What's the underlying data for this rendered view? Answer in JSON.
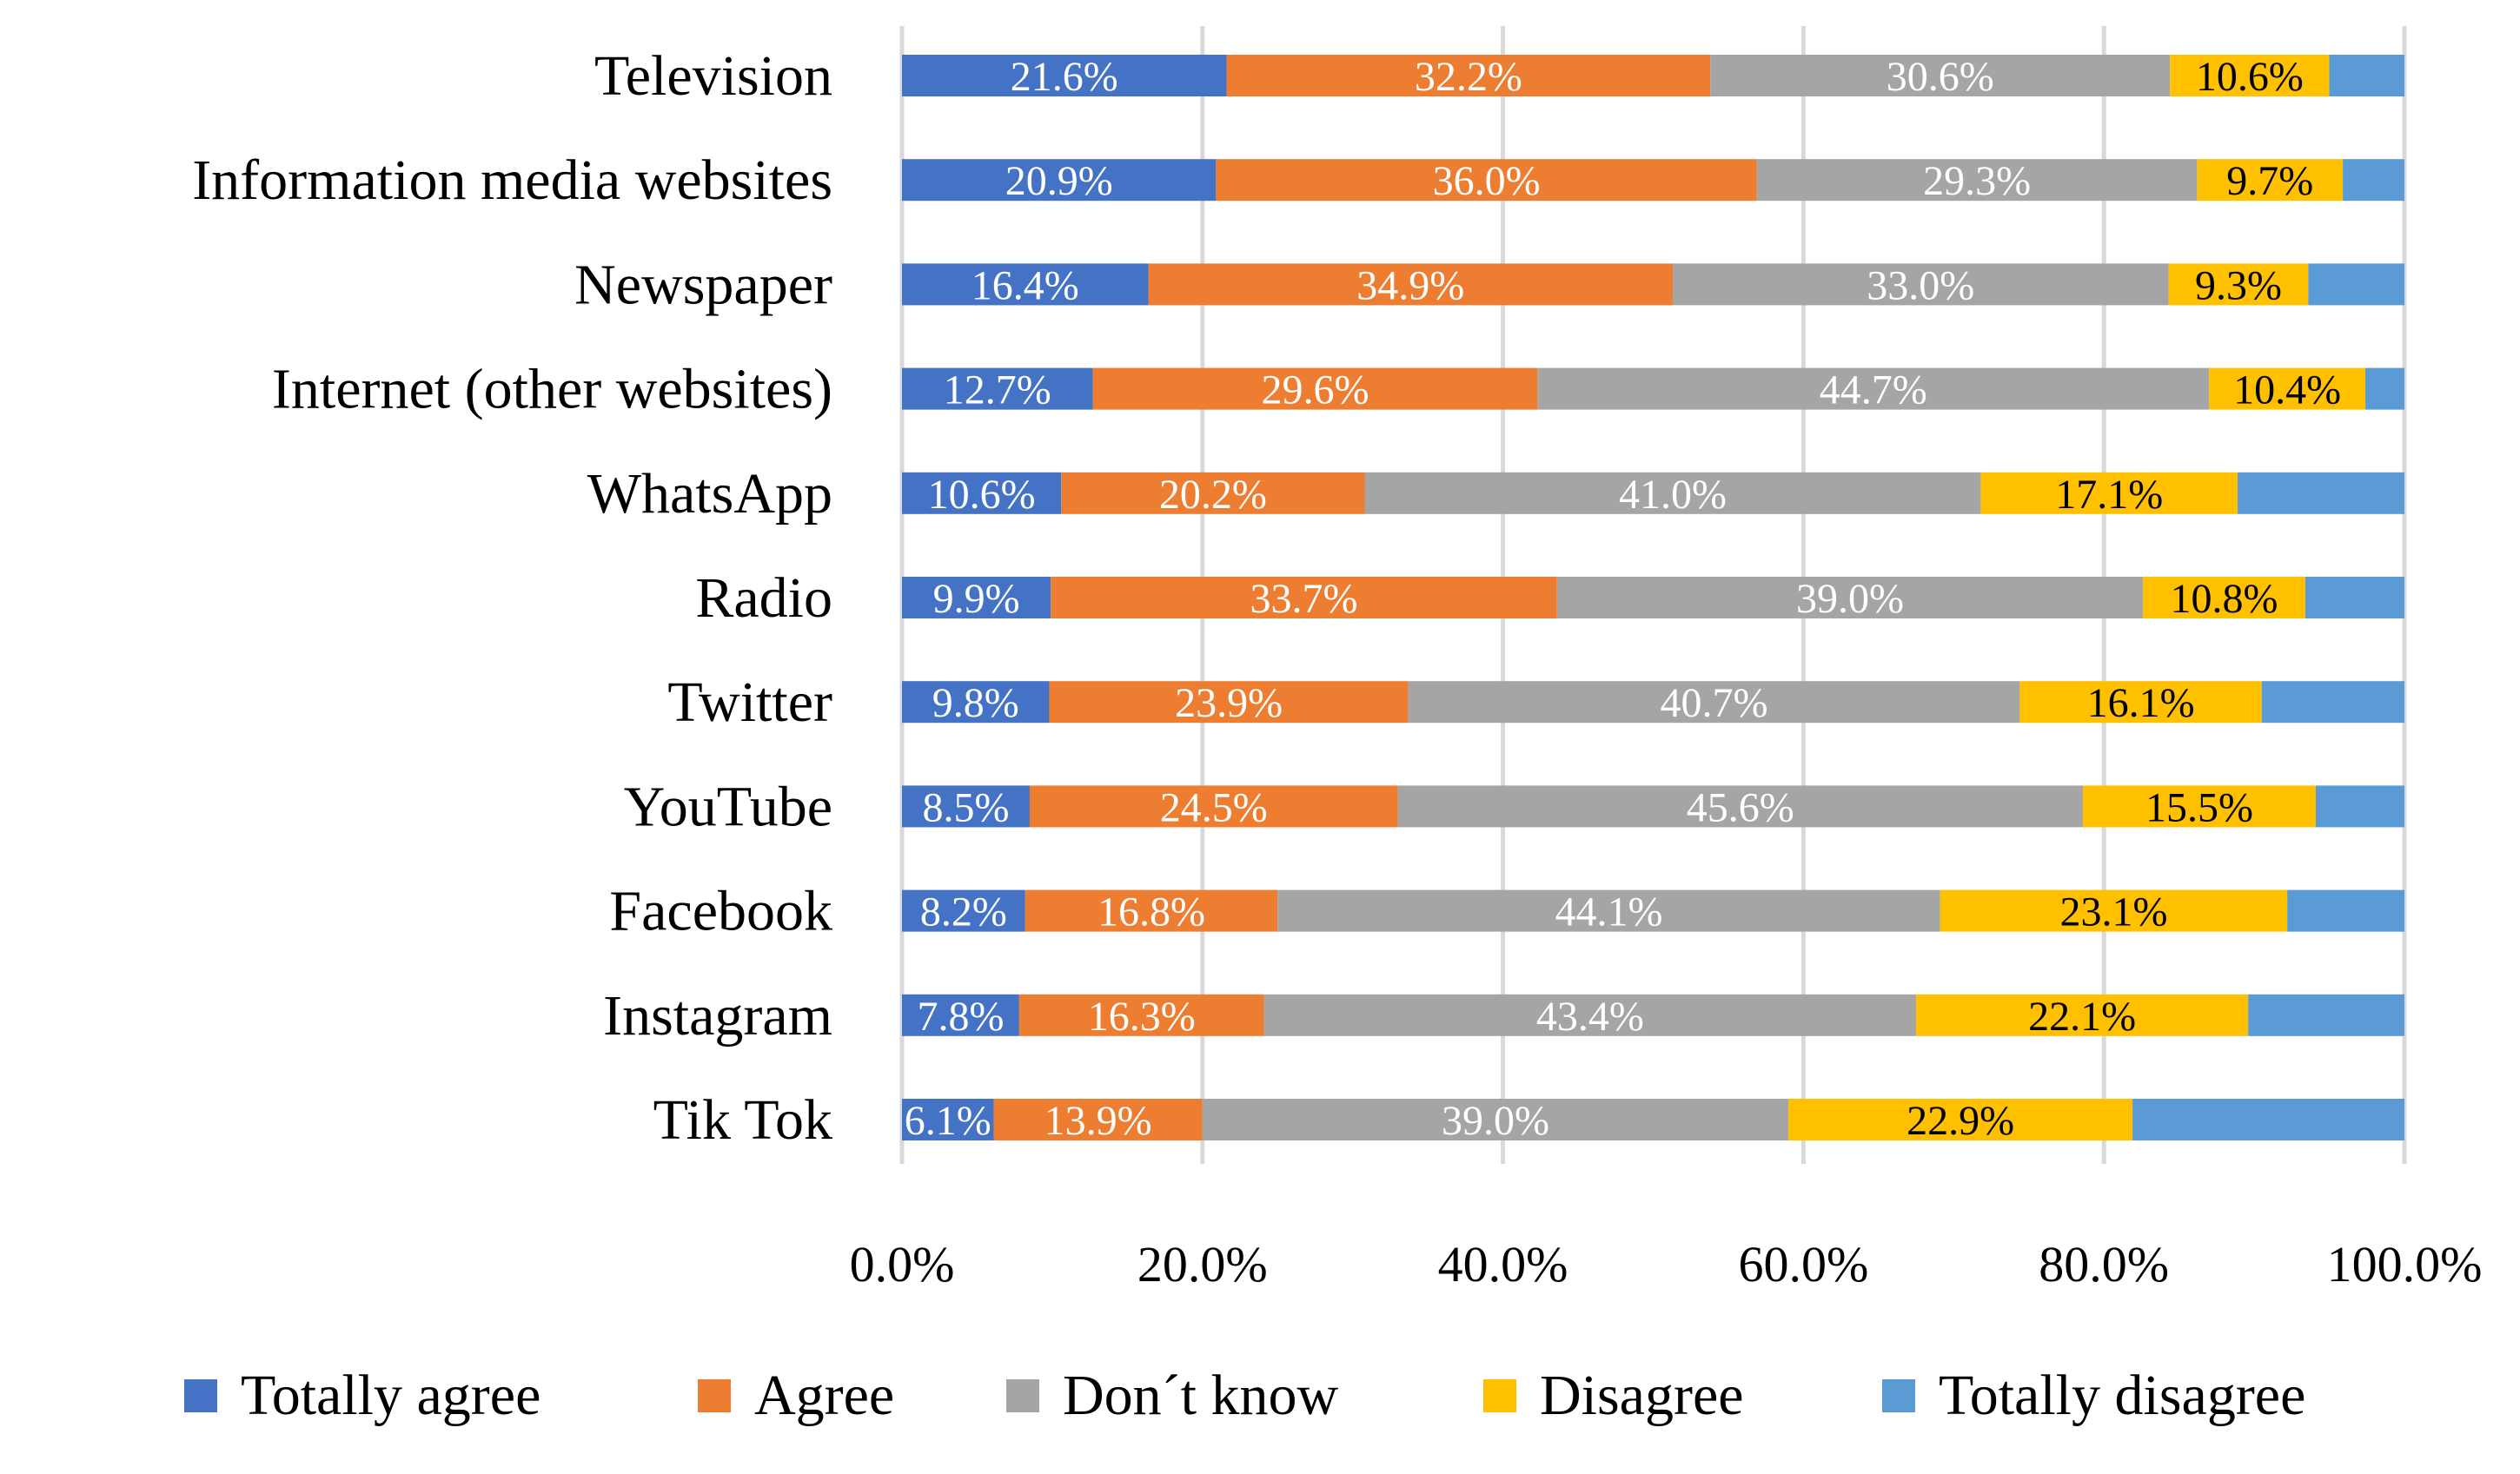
{
  "chart_data": {
    "type": "bar",
    "orientation": "horizontal",
    "stacked": true,
    "normalized": true,
    "title": "",
    "xlabel": "",
    "ylabel": "",
    "xlim": [
      0,
      100
    ],
    "x_ticks": [
      0,
      20,
      40,
      60,
      80,
      100
    ],
    "x_tick_labels": [
      "0.0%",
      "20.0%",
      "40.0%",
      "60.0%",
      "80.0%",
      "100.0%"
    ],
    "grid": "vertical",
    "legend_position": "bottom",
    "categories": [
      "Television",
      "Information media websites",
      "Newspaper",
      "Internet (other websites)",
      "WhatsApp",
      "Radio",
      "Twitter",
      "YouTube",
      "Facebook",
      "Instagram",
      "Tik Tok"
    ],
    "series": [
      {
        "name": "Totally agree",
        "color": "#4472C4",
        "label_color": "#ffffff",
        "values": [
          21.6,
          20.9,
          16.4,
          12.7,
          10.6,
          9.9,
          9.8,
          8.5,
          8.2,
          7.8,
          6.1
        ],
        "labels": [
          "21.6%",
          "20.9%",
          "16.4%",
          "12.7%",
          "10.6%",
          "9.9%",
          "9.8%",
          "8.5%",
          "8.2%",
          "7.8%",
          "6.1%"
        ]
      },
      {
        "name": "Agree",
        "color": "#ED7D31",
        "label_color": "#ffffff",
        "values": [
          32.2,
          36.0,
          34.9,
          29.6,
          20.2,
          33.7,
          23.9,
          24.5,
          16.8,
          16.3,
          13.9
        ],
        "labels": [
          "32.2%",
          "36.0%",
          "34.9%",
          "29.6%",
          "20.2%",
          "33.7%",
          "23.9%",
          "24.5%",
          "16.8%",
          "16.3%",
          "13.9%"
        ]
      },
      {
        "name": "Don´t know",
        "color": "#A5A5A5",
        "label_color": "#ffffff",
        "values": [
          30.6,
          29.3,
          33.0,
          44.7,
          41.0,
          39.0,
          40.7,
          45.6,
          44.1,
          43.4,
          39.0
        ],
        "labels": [
          "30.6%",
          "29.3%",
          "33.0%",
          "44.7%",
          "41.0%",
          "39.0%",
          "40.7%",
          "45.6%",
          "44.1%",
          "43.4%",
          "39.0%"
        ]
      },
      {
        "name": "Disagree",
        "color": "#FFC000",
        "label_color": "#000000",
        "values": [
          10.6,
          9.7,
          9.3,
          10.4,
          17.1,
          10.8,
          16.1,
          15.5,
          23.1,
          22.1,
          22.9
        ],
        "labels": [
          "10.6%",
          "9.7%",
          "9.3%",
          "10.4%",
          "17.1%",
          "10.8%",
          "16.1%",
          "15.5%",
          "23.1%",
          "22.1%",
          "22.9%"
        ]
      },
      {
        "name": "Totally disagree",
        "color": "#5B9BD5",
        "label_color": "#ffffff",
        "values": [
          5.0,
          4.1,
          6.4,
          2.6,
          11.1,
          6.6,
          9.5,
          5.9,
          7.8,
          10.4,
          18.1
        ],
        "labels": [
          "",
          "",
          "",
          "",
          "",
          "",
          "",
          "",
          "",
          "",
          ""
        ]
      }
    ]
  }
}
